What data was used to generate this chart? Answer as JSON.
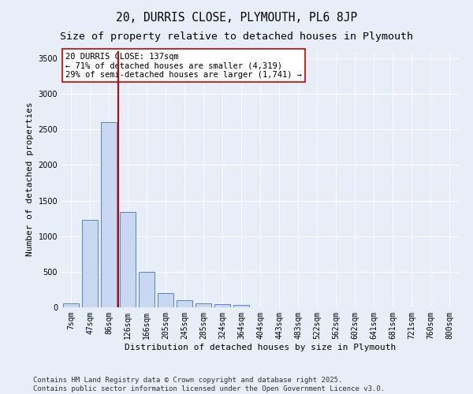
{
  "title1": "20, DURRIS CLOSE, PLYMOUTH, PL6 8JP",
  "title2": "Size of property relative to detached houses in Plymouth",
  "xlabel": "Distribution of detached houses by size in Plymouth",
  "ylabel": "Number of detached properties",
  "categories": [
    "7sqm",
    "47sqm",
    "86sqm",
    "126sqm",
    "166sqm",
    "205sqm",
    "245sqm",
    "285sqm",
    "324sqm",
    "364sqm",
    "404sqm",
    "443sqm",
    "483sqm",
    "522sqm",
    "562sqm",
    "602sqm",
    "641sqm",
    "681sqm",
    "721sqm",
    "760sqm",
    "800sqm"
  ],
  "values": [
    50,
    1230,
    2600,
    1340,
    500,
    200,
    100,
    55,
    45,
    30,
    0,
    0,
    0,
    0,
    0,
    0,
    0,
    0,
    0,
    0,
    0
  ],
  "bar_color": "#c8d8f0",
  "bar_edge_color": "#4472c4",
  "vline_x_index": 3,
  "vline_color": "#cc0000",
  "annotation_text": "20 DURRIS CLOSE: 137sqm\n← 71% of detached houses are smaller (4,319)\n29% of semi-detached houses are larger (1,741) →",
  "annotation_box_color": "#ffffff",
  "annotation_box_edge_color": "#cc0000",
  "ylim": [
    0,
    3600
  ],
  "yticks": [
    0,
    500,
    1000,
    1500,
    2000,
    2500,
    3000,
    3500
  ],
  "background_color": "#e8eef8",
  "grid_color": "#ffffff",
  "footer1": "Contains HM Land Registry data © Crown copyright and database right 2025.",
  "footer2": "Contains public sector information licensed under the Open Government Licence v3.0.",
  "title1_fontsize": 10.5,
  "title2_fontsize": 9.5,
  "axis_label_fontsize": 8,
  "tick_fontsize": 7,
  "footer_fontsize": 6.5,
  "annot_fontsize": 7.5
}
